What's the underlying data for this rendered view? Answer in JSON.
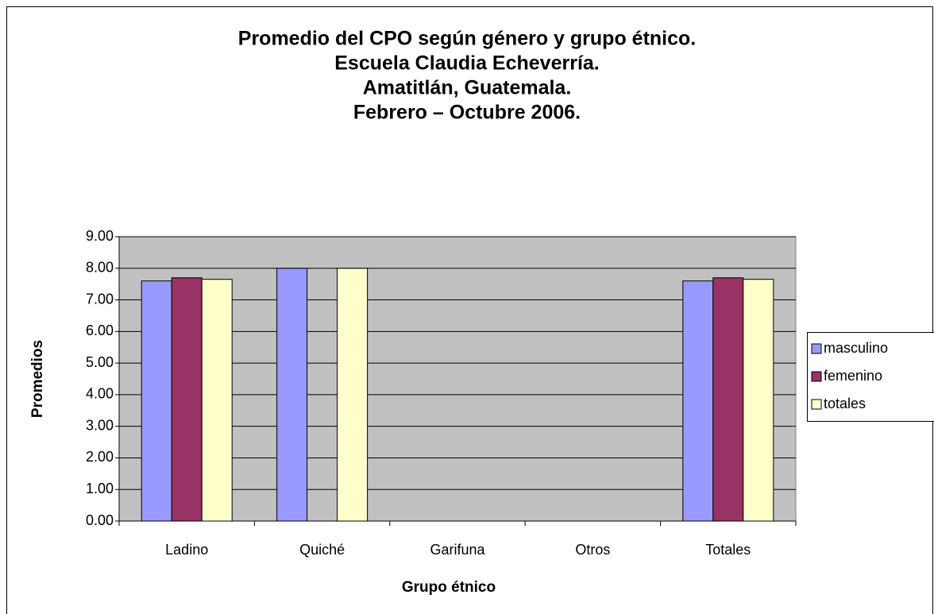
{
  "chart_data": {
    "type": "bar",
    "title": [
      "Promedio del CPO según género y grupo étnico.",
      "Escuela Claudia Echeverría.",
      "Amatitlán, Guatemala.",
      "Febrero – Octubre 2006."
    ],
    "x_label": "Grupo étnico",
    "y_label": "Promedios",
    "categories": [
      "Ladino",
      "Quiché",
      "Garifuna",
      "Otros",
      "Totales"
    ],
    "series": [
      {
        "name": "masculino",
        "color": "#9999ff",
        "values": [
          7.6,
          8.0,
          null,
          null,
          7.6
        ]
      },
      {
        "name": "femenino",
        "color": "#993366",
        "values": [
          7.7,
          null,
          null,
          null,
          7.7
        ]
      },
      {
        "name": "totales",
        "color": "#ffffcc",
        "values": [
          7.65,
          8.0,
          null,
          null,
          7.65
        ]
      }
    ],
    "ylim": [
      0,
      9
    ],
    "yticks": [
      {
        "value": 0,
        "label": "0.00"
      },
      {
        "value": 1,
        "label": "1.00"
      },
      {
        "value": 2,
        "label": "2.00"
      },
      {
        "value": 3,
        "label": "3.00"
      },
      {
        "value": 4,
        "label": "4.00"
      },
      {
        "value": 5,
        "label": "5.00"
      },
      {
        "value": 6,
        "label": "6.00"
      },
      {
        "value": 7,
        "label": "7.00"
      },
      {
        "value": 8,
        "label": "8.00"
      },
      {
        "value": 9,
        "label": "9.00"
      }
    ],
    "grid": true,
    "plot_background": "#c0c0c0",
    "legend": "right"
  }
}
